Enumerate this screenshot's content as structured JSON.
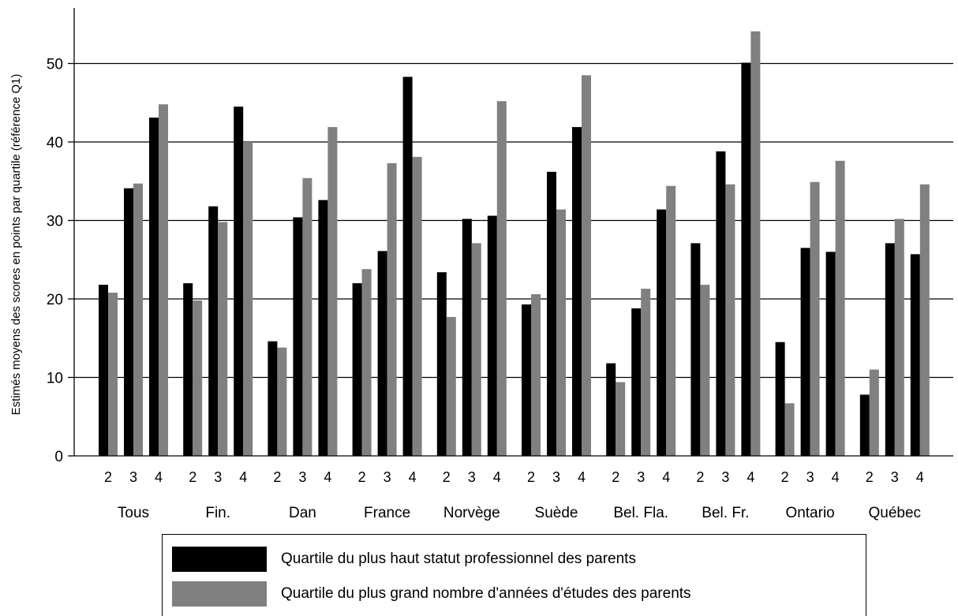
{
  "chart_data": {
    "type": "bar",
    "ylabel": "Estimés moyens des scores en points par quartile (référence Q1)",
    "ylim": [
      0,
      55
    ],
    "yticks": [
      0,
      10,
      20,
      30,
      40,
      50
    ],
    "grid": true,
    "quartiles": [
      "2",
      "3",
      "4"
    ],
    "categories": [
      "Tous",
      "Fin.",
      "Dan",
      "France",
      "Norvège",
      "Suède",
      "Bel. Fla.",
      "Bel. Fr.",
      "Ontario",
      "Québec"
    ],
    "series": [
      {
        "name": "Quartile du plus haut statut professionnel des parents",
        "color": "#000000",
        "values": [
          [
            21.8,
            34.1,
            43.1
          ],
          [
            22.0,
            31.8,
            44.5
          ],
          [
            14.6,
            30.4,
            32.6
          ],
          [
            22.0,
            26.1,
            48.3
          ],
          [
            23.4,
            30.2,
            30.6
          ],
          [
            19.3,
            36.2,
            41.9
          ],
          [
            11.8,
            18.8,
            31.4
          ],
          [
            27.1,
            38.8,
            50.1
          ],
          [
            14.5,
            26.5,
            26.0
          ],
          [
            7.8,
            27.1,
            25.7
          ]
        ]
      },
      {
        "name": "Quartile du plus grand nombre d'années d'études des parents",
        "color": "#808080",
        "values": [
          [
            20.8,
            34.7,
            44.8
          ],
          [
            19.8,
            29.8,
            40.0
          ],
          [
            13.8,
            35.4,
            41.9
          ],
          [
            23.8,
            37.3,
            38.1
          ],
          [
            17.7,
            27.1,
            45.2
          ],
          [
            20.6,
            31.4,
            48.5
          ],
          [
            9.4,
            21.3,
            34.4
          ],
          [
            21.8,
            34.6,
            54.1
          ],
          [
            6.7,
            34.9,
            37.6
          ],
          [
            11.0,
            30.2,
            34.6
          ]
        ]
      }
    ]
  }
}
